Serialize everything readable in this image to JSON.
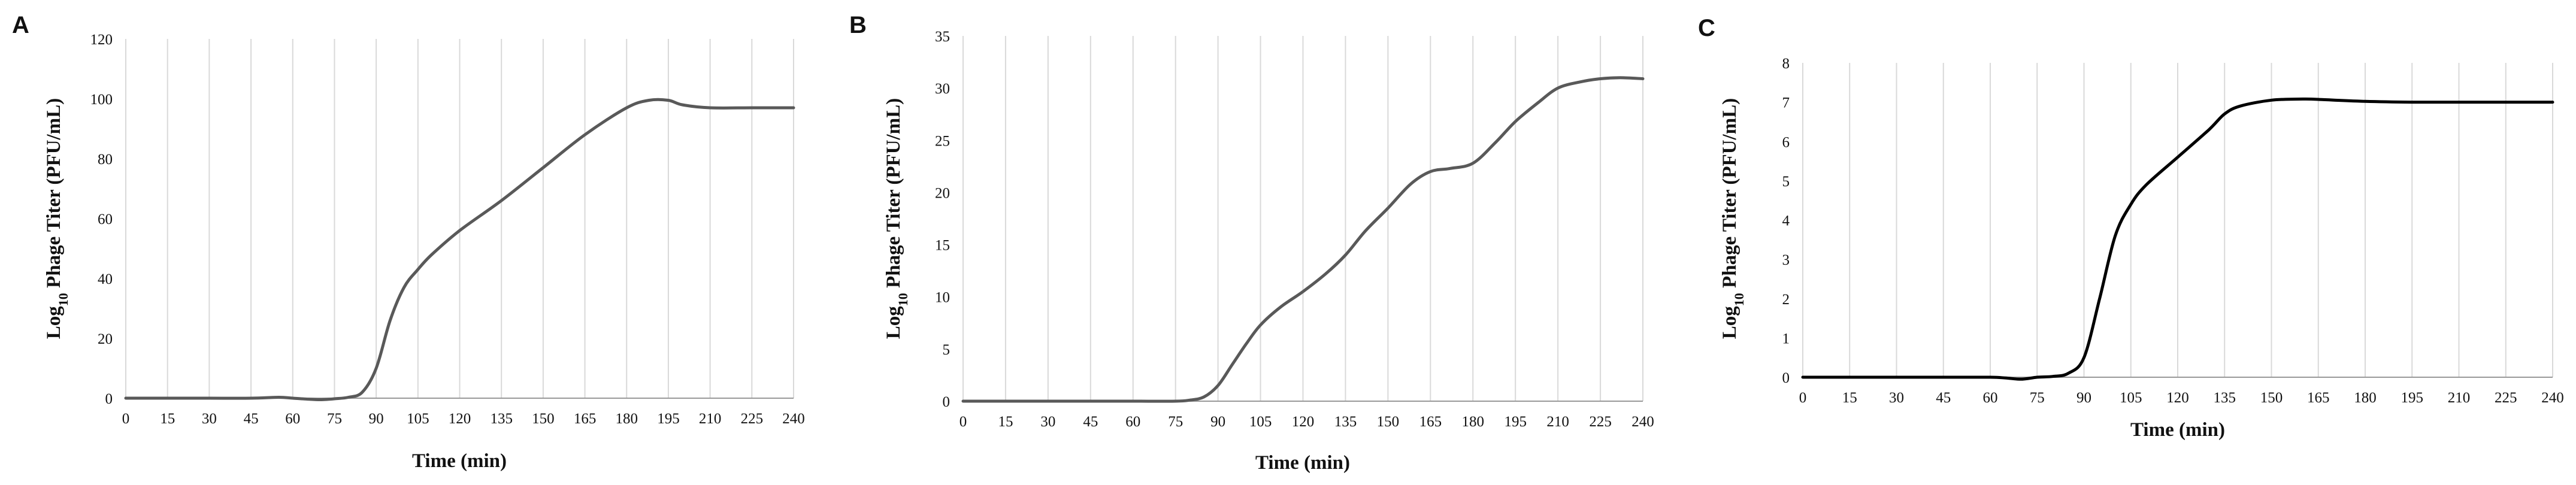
{
  "chart_data": [
    {
      "panel": "A",
      "type": "line",
      "xlabel": "Time (min)",
      "ylabel_parts": [
        "Log",
        "10",
        " Phage Titer (PFU/mL)"
      ],
      "xlim": [
        0,
        240
      ],
      "ylim": [
        0,
        120
      ],
      "xticks": [
        0,
        15,
        30,
        45,
        60,
        75,
        90,
        105,
        120,
        135,
        150,
        165,
        180,
        195,
        210,
        225,
        240
      ],
      "yticks": [
        0,
        20,
        40,
        60,
        80,
        100,
        120
      ],
      "grid": "vertical",
      "line_color": "#595959",
      "x": [
        0,
        15,
        30,
        45,
        55,
        60,
        65,
        70,
        75,
        80,
        85,
        90,
        95,
        100,
        105,
        110,
        120,
        135,
        150,
        165,
        180,
        188,
        195,
        200,
        210,
        225,
        240
      ],
      "y": [
        0,
        0,
        0,
        0,
        0.3,
        0,
        -0.3,
        -0.5,
        -0.2,
        0.3,
        2,
        10,
        26,
        37,
        43,
        48,
        56,
        66,
        77,
        88,
        97,
        99.5,
        99.5,
        98,
        97,
        97,
        97
      ]
    },
    {
      "panel": "B",
      "type": "line",
      "xlabel": "Time (min)",
      "ylabel_parts": [
        "Log",
        "10",
        " Phage Titer (PFU/mL)"
      ],
      "xlim": [
        0,
        240
      ],
      "ylim": [
        0,
        35
      ],
      "xticks": [
        0,
        15,
        30,
        45,
        60,
        75,
        90,
        105,
        120,
        135,
        150,
        165,
        180,
        195,
        210,
        225,
        240
      ],
      "yticks": [
        0,
        5,
        10,
        15,
        20,
        25,
        30,
        35
      ],
      "grid": "vertical",
      "line_color": "#595959",
      "x": [
        0,
        15,
        30,
        45,
        60,
        75,
        80,
        85,
        90,
        95,
        100,
        105,
        112,
        120,
        128,
        135,
        142,
        150,
        158,
        165,
        172,
        180,
        188,
        195,
        203,
        210,
        218,
        225,
        232,
        240
      ],
      "y": [
        0,
        0,
        0,
        0,
        0,
        0,
        0.1,
        0.4,
        1.5,
        3.5,
        5.5,
        7.3,
        9,
        10.5,
        12.2,
        14,
        16.3,
        18.5,
        20.8,
        22,
        22.3,
        22.8,
        24.8,
        26.8,
        28.6,
        30,
        30.6,
        30.9,
        31,
        30.9
      ]
    },
    {
      "panel": "C",
      "type": "line",
      "xlabel": "Time (min)",
      "ylabel_parts": [
        "Log",
        "10",
        " Phage Titer (PFU/mL)"
      ],
      "xlim": [
        0,
        240
      ],
      "ylim": [
        0,
        8
      ],
      "xticks": [
        0,
        15,
        30,
        45,
        60,
        75,
        90,
        105,
        120,
        135,
        150,
        165,
        180,
        195,
        210,
        225,
        240
      ],
      "yticks": [
        0,
        1,
        2,
        3,
        4,
        5,
        6,
        7,
        8
      ],
      "grid": "vertical",
      "line_color": "#000000",
      "x": [
        0,
        15,
        30,
        45,
        60,
        65,
        70,
        75,
        80,
        85,
        90,
        95,
        100,
        105,
        110,
        120,
        130,
        135,
        140,
        150,
        160,
        165,
        180,
        195,
        210,
        225,
        240
      ],
      "y": [
        0,
        0,
        0,
        0,
        0,
        -0.02,
        -0.05,
        0,
        0.02,
        0.1,
        0.5,
        2,
        3.6,
        4.4,
        4.9,
        5.6,
        6.3,
        6.7,
        6.9,
        7.05,
        7.08,
        7.07,
        7.02,
        7.0,
        7.0,
        7.0,
        7.0
      ]
    }
  ]
}
